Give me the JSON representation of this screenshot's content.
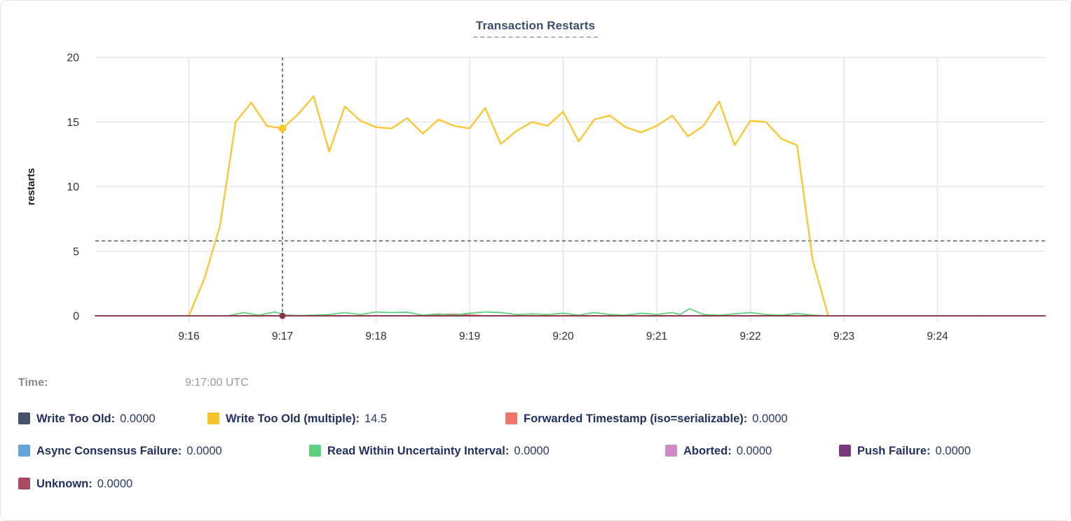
{
  "chart_data": {
    "type": "line",
    "title": "Transaction Restarts",
    "ylabel": "restarts",
    "ylim": [
      0,
      20
    ],
    "yticks": [
      0,
      5,
      10,
      15,
      20
    ],
    "x_domain_seconds": [
      0,
      609
    ],
    "xticks": [
      {
        "label": "9:16",
        "s": 60
      },
      {
        "label": "9:17",
        "s": 120
      },
      {
        "label": "9:18",
        "s": 180
      },
      {
        "label": "9:19",
        "s": 240
      },
      {
        "label": "9:20",
        "s": 300
      },
      {
        "label": "9:21",
        "s": 360
      },
      {
        "label": "9:22",
        "s": 420
      },
      {
        "label": "9:23",
        "s": 480
      },
      {
        "label": "9:24",
        "s": 540
      }
    ],
    "grid": true,
    "series": [
      {
        "name": "Write Too Old",
        "color": "#44536b",
        "width": 1.5,
        "points": [
          [
            0,
            0
          ],
          [
            609,
            0
          ]
        ]
      },
      {
        "name": "Async Consensus Failure",
        "color": "#63a3d8",
        "width": 1.5,
        "points": [
          [
            0,
            0
          ],
          [
            609,
            0
          ]
        ]
      },
      {
        "name": "Aborted",
        "color": "#d18ac6",
        "width": 1.5,
        "points": [
          [
            0,
            0
          ],
          [
            609,
            0
          ]
        ]
      },
      {
        "name": "Push Failure",
        "color": "#7c3a7e",
        "width": 1.5,
        "points": [
          [
            0,
            0
          ],
          [
            609,
            0
          ]
        ]
      },
      {
        "name": "Forwarded Timestamp (iso=serializable)",
        "color": "#e8655a",
        "width": 1.8,
        "points": [
          [
            0,
            0
          ],
          [
            205,
            0
          ],
          [
            215,
            0.05
          ],
          [
            222,
            0.12
          ],
          [
            232,
            0.12
          ],
          [
            242,
            0.05
          ],
          [
            250,
            0
          ],
          [
            609,
            0
          ]
        ]
      },
      {
        "name": "Read Within Uncertainty Interval",
        "color": "#5ed17e",
        "width": 1.8,
        "points": [
          [
            0,
            0
          ],
          [
            85,
            0
          ],
          [
            95,
            0.25
          ],
          [
            105,
            0.05
          ],
          [
            115,
            0.3
          ],
          [
            123,
            0.05
          ],
          [
            130,
            0.02
          ],
          [
            140,
            0.05
          ],
          [
            150,
            0.1
          ],
          [
            160,
            0.25
          ],
          [
            170,
            0.1
          ],
          [
            180,
            0.3
          ],
          [
            190,
            0.25
          ],
          [
            200,
            0.28
          ],
          [
            210,
            0.05
          ],
          [
            220,
            0.15
          ],
          [
            230,
            0.05
          ],
          [
            240,
            0.2
          ],
          [
            250,
            0.3
          ],
          [
            260,
            0.25
          ],
          [
            270,
            0.1
          ],
          [
            280,
            0.15
          ],
          [
            290,
            0.1
          ],
          [
            300,
            0.2
          ],
          [
            310,
            0.05
          ],
          [
            320,
            0.25
          ],
          [
            330,
            0.1
          ],
          [
            340,
            0.05
          ],
          [
            350,
            0.2
          ],
          [
            360,
            0.1
          ],
          [
            370,
            0.25
          ],
          [
            375,
            0.1
          ],
          [
            381,
            0.55
          ],
          [
            390,
            0.1
          ],
          [
            400,
            0.05
          ],
          [
            410,
            0.15
          ],
          [
            420,
            0.25
          ],
          [
            430,
            0.1
          ],
          [
            440,
            0.05
          ],
          [
            450,
            0.18
          ],
          [
            460,
            0.05
          ],
          [
            470,
            0
          ],
          [
            609,
            0
          ]
        ]
      },
      {
        "name": "Write Too Old (multiple)",
        "color": "#fcc42d",
        "width": 2.3,
        "points": [
          [
            60,
            0
          ],
          [
            70,
            2.9
          ],
          [
            80,
            7.0
          ],
          [
            90,
            15.0
          ],
          [
            100,
            16.5
          ],
          [
            110,
            14.7
          ],
          [
            120,
            14.5
          ],
          [
            130,
            15.6
          ],
          [
            140,
            17.0
          ],
          [
            150,
            12.7
          ],
          [
            160,
            16.2
          ],
          [
            170,
            15.1
          ],
          [
            180,
            14.6
          ],
          [
            190,
            14.5
          ],
          [
            200,
            15.3
          ],
          [
            210,
            14.1
          ],
          [
            220,
            15.2
          ],
          [
            230,
            14.7
          ],
          [
            240,
            14.5
          ],
          [
            250,
            16.1
          ],
          [
            260,
            13.3
          ],
          [
            270,
            14.3
          ],
          [
            280,
            15.0
          ],
          [
            290,
            14.7
          ],
          [
            300,
            15.8
          ],
          [
            310,
            13.5
          ],
          [
            320,
            15.2
          ],
          [
            330,
            15.5
          ],
          [
            340,
            14.6
          ],
          [
            350,
            14.2
          ],
          [
            360,
            14.7
          ],
          [
            370,
            15.5
          ],
          [
            380,
            13.9
          ],
          [
            390,
            14.7
          ],
          [
            400,
            16.6
          ],
          [
            410,
            13.2
          ],
          [
            420,
            15.1
          ],
          [
            430,
            15.0
          ],
          [
            440,
            13.7
          ],
          [
            450,
            13.2
          ],
          [
            460,
            4.3
          ],
          [
            470,
            0
          ]
        ]
      },
      {
        "name": "Unknown",
        "color": "#8e3048",
        "width": 1.8,
        "points": [
          [
            0,
            0
          ],
          [
            609,
            0
          ]
        ]
      }
    ],
    "crosshair": {
      "x_seconds": 120,
      "hline_value": 5.8,
      "line_color": "#46627e",
      "dots": [
        {
          "x_seconds": 120,
          "value": 14.5,
          "color": "#fcc42d",
          "r": 5.5
        },
        {
          "x_seconds": 120,
          "value": 0,
          "color": "#8e3048",
          "r": 4.5
        }
      ]
    },
    "legend_position": "bottom"
  },
  "header": {
    "title": "Transaction Restarts"
  },
  "axes": {
    "ylabel": "restarts"
  },
  "time_row": {
    "label": "Time:",
    "value": "9:17:00 UTC"
  },
  "legend": {
    "items": [
      {
        "label": "Write Too Old:",
        "value": "0.0000",
        "color": "#44536b"
      },
      {
        "label": "Write Too Old (multiple):",
        "value": "14.5",
        "color": "#f6c32a"
      },
      {
        "label": "Forwarded Timestamp (iso=serializable):",
        "value": "0.0000",
        "color": "#ed756a"
      },
      {
        "label": "Async Consensus Failure:",
        "value": "0.0000",
        "color": "#63a3d8"
      },
      {
        "label": "Read Within Uncertainty Interval:",
        "value": "0.0000",
        "color": "#5ed17e"
      },
      {
        "label": "Aborted:",
        "value": "0.0000",
        "color": "#d18ac6"
      },
      {
        "label": "Push Failure:",
        "value": "0.0000",
        "color": "#7c3a7e"
      },
      {
        "label": "Unknown:",
        "value": "0.0000",
        "color": "#a84a62"
      }
    ]
  }
}
